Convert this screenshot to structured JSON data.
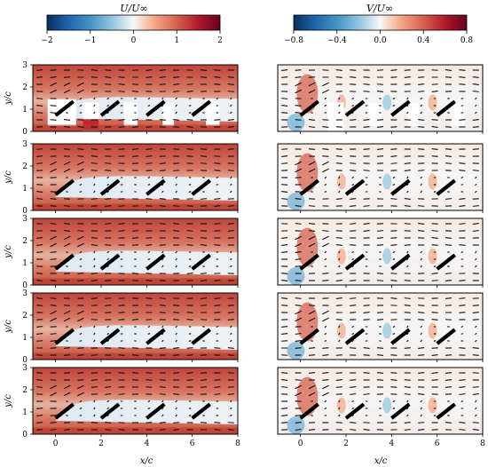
{
  "figure": {
    "colormap": {
      "low": "#0b3c78",
      "mid": "#f6f6f6",
      "high": "#8b0a20",
      "stops": [
        "#053061",
        "#2166ac",
        "#4393c3",
        "#92c5de",
        "#f7f7f7",
        "#f4a582",
        "#d6604d",
        "#b2182b",
        "#67001f"
      ]
    },
    "foil_color": "#000000",
    "frame_color": "#000000"
  },
  "chart_data": [
    {
      "type": "heatmap",
      "title": "U/U∞",
      "colorbar": {
        "min": -2,
        "max": 2,
        "ticks": [
          "−2",
          "−1",
          "0",
          "1",
          "2"
        ],
        "position": "top"
      },
      "xlabel": "x/c",
      "ylabel": "y/c",
      "xlim": [
        -1,
        8
      ],
      "ylim": [
        0,
        3
      ],
      "xticks": [
        "0",
        "2",
        "4",
        "6",
        "8"
      ],
      "yticks": [
        "0",
        "1",
        "2",
        "3"
      ],
      "rows": 5,
      "airfoils_x": [
        0,
        2,
        4,
        6
      ],
      "grid": false
    },
    {
      "type": "heatmap",
      "title": "V/U∞",
      "colorbar": {
        "min": -0.8,
        "max": 0.8,
        "ticks": [
          "−0.8",
          "−0.4",
          "0.0",
          "0.4",
          "0.8"
        ],
        "position": "top"
      },
      "xlabel": "x/c",
      "ylabel": "",
      "xlim": [
        -1,
        8
      ],
      "ylim": [
        0,
        3
      ],
      "xticks": [
        "0",
        "2",
        "4",
        "6",
        "8"
      ],
      "yticks": [],
      "rows": 5,
      "airfoils_x": [
        0,
        2,
        4,
        6
      ],
      "grid": false
    }
  ]
}
